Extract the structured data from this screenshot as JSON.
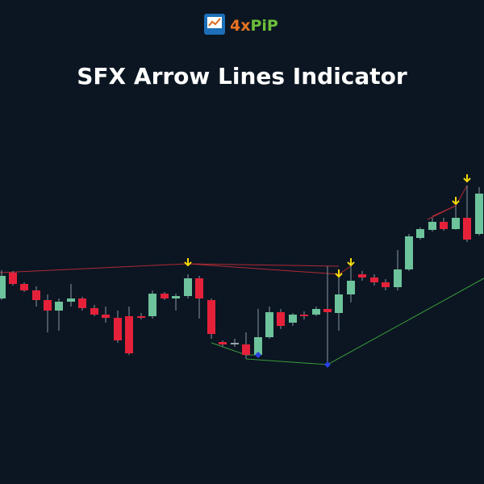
{
  "logo": {
    "prefix": "4x",
    "suffix": "PiP"
  },
  "title": "SFX Arrow Lines Indicator"
}
